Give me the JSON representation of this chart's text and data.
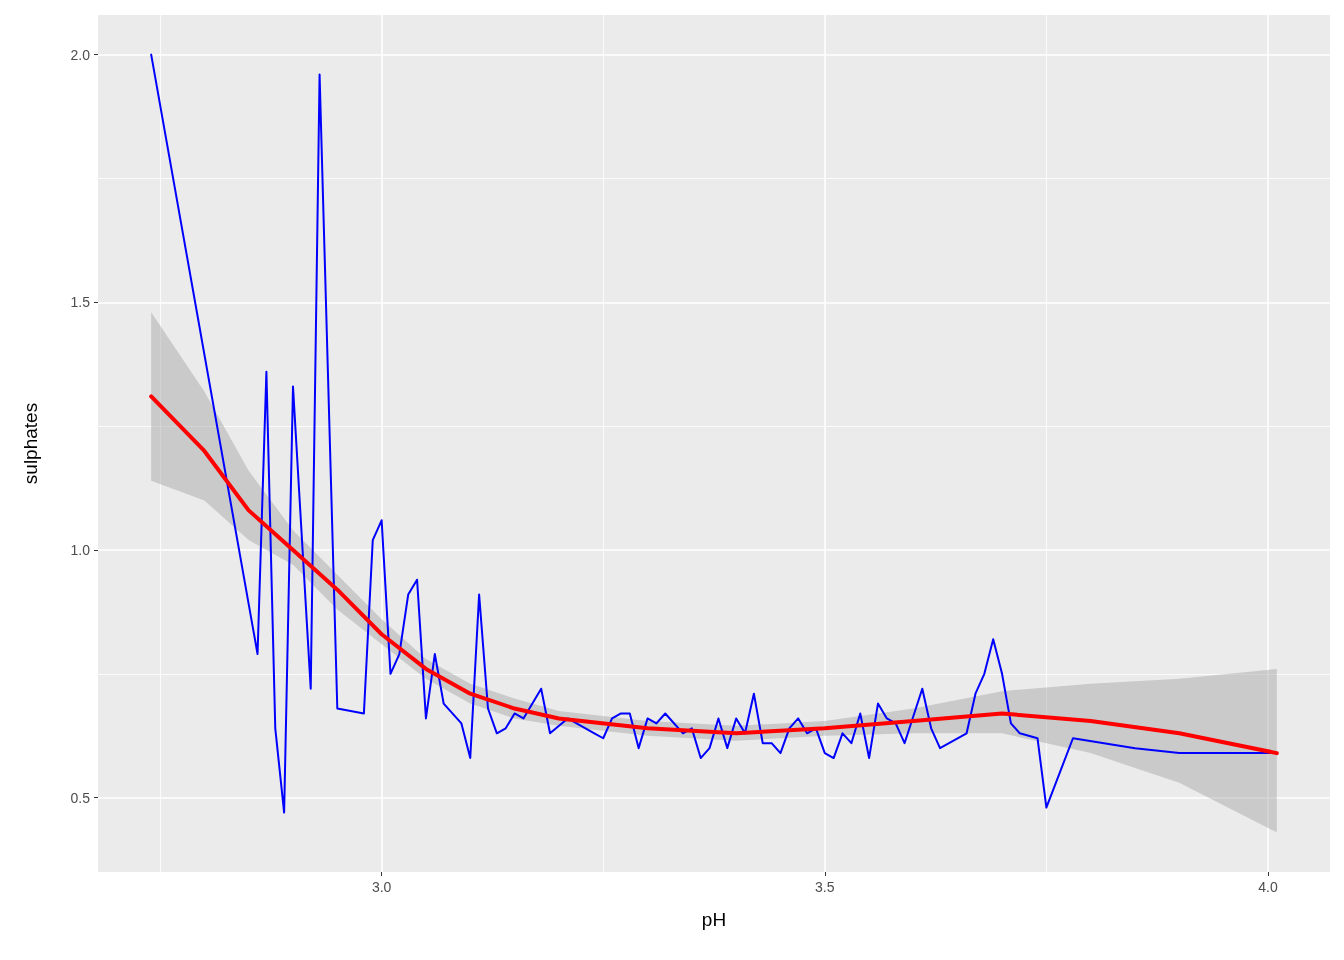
{
  "chart_data": {
    "type": "line",
    "xlabel": "pH",
    "ylabel": "sulphates",
    "xlim": [
      2.68,
      4.07
    ],
    "ylim": [
      0.35,
      2.08
    ],
    "xticks": [
      {
        "value": 2.75,
        "label": null
      },
      {
        "value": 3.0,
        "label": "3.0"
      },
      {
        "value": 3.25,
        "label": null
      },
      {
        "value": 3.5,
        "label": "3.5"
      },
      {
        "value": 3.75,
        "label": null
      },
      {
        "value": 4.0,
        "label": "4.0"
      }
    ],
    "yticks": [
      0.5,
      {
        "value": 0.75,
        "label": null
      },
      {
        "value": 1.0,
        "label": "1.0"
      },
      {
        "value": 1.25,
        "label": null
      },
      {
        "value": 1.5,
        "label": "1.5"
      },
      {
        "value": 1.75,
        "label": null
      },
      {
        "value": 2.0,
        "label": "2.0"
      }
    ],
    "grid": true,
    "marker": "none",
    "line_style": "solid",
    "series": [
      {
        "color": "#0000ff",
        "x": [
          2.74,
          2.86,
          2.87,
          2.88,
          2.89,
          2.9,
          2.92,
          2.93,
          2.95,
          2.98,
          2.99,
          3.0,
          3.01,
          3.02,
          3.03,
          3.04,
          3.05,
          3.06,
          3.07,
          3.09,
          3.1,
          3.11,
          3.12,
          3.13,
          3.14,
          3.15,
          3.16,
          3.18,
          3.19,
          3.21,
          3.22,
          3.24,
          3.25,
          3.26,
          3.27,
          3.28,
          3.29,
          3.3,
          3.31,
          3.32,
          3.34,
          3.35,
          3.36,
          3.37,
          3.38,
          3.39,
          3.4,
          3.41,
          3.42,
          3.43,
          3.44,
          3.45,
          3.46,
          3.47,
          3.48,
          3.49,
          3.5,
          3.51,
          3.52,
          3.53,
          3.54,
          3.55,
          3.56,
          3.57,
          3.58,
          3.59,
          3.61,
          3.62,
          3.63,
          3.66,
          3.67,
          3.68,
          3.69,
          3.7,
          3.71,
          3.72,
          3.74,
          3.75,
          3.78,
          3.85,
          3.9,
          4.01
        ],
        "values": [
          2.0,
          0.79,
          1.36,
          0.64,
          0.47,
          1.33,
          0.72,
          1.96,
          0.68,
          0.67,
          1.02,
          1.06,
          0.75,
          0.79,
          0.91,
          0.94,
          0.66,
          0.79,
          0.69,
          0.65,
          0.58,
          0.91,
          0.68,
          0.63,
          0.64,
          0.67,
          0.66,
          0.72,
          0.63,
          0.66,
          0.65,
          0.63,
          0.62,
          0.66,
          0.67,
          0.67,
          0.6,
          0.66,
          0.65,
          0.67,
          0.63,
          0.64,
          0.58,
          0.6,
          0.66,
          0.6,
          0.66,
          0.63,
          0.71,
          0.61,
          0.61,
          0.59,
          0.64,
          0.66,
          0.63,
          0.64,
          0.59,
          0.58,
          0.63,
          0.61,
          0.67,
          0.58,
          0.69,
          0.66,
          0.65,
          0.61,
          0.72,
          0.64,
          0.6,
          0.63,
          0.71,
          0.75,
          0.82,
          0.75,
          0.65,
          0.63,
          0.62,
          0.48,
          0.62,
          0.6,
          0.59,
          0.59
        ]
      },
      {
        "color": "#ff0000",
        "x": [
          2.74,
          2.8,
          2.85,
          2.9,
          2.95,
          3.0,
          3.05,
          3.1,
          3.15,
          3.2,
          3.3,
          3.4,
          3.5,
          3.6,
          3.7,
          3.8,
          3.9,
          4.01
        ],
        "values": [
          1.31,
          1.2,
          1.08,
          1.0,
          0.92,
          0.83,
          0.76,
          0.71,
          0.68,
          0.66,
          0.64,
          0.63,
          0.64,
          0.655,
          0.67,
          0.655,
          0.63,
          0.59
        ],
        "lower": [
          1.14,
          1.1,
          1.02,
          0.97,
          0.88,
          0.81,
          0.74,
          0.69,
          0.66,
          0.645,
          0.625,
          0.615,
          0.625,
          0.63,
          0.63,
          0.59,
          0.53,
          0.43
        ],
        "upper": [
          1.48,
          1.32,
          1.16,
          1.04,
          0.95,
          0.86,
          0.78,
          0.73,
          0.7,
          0.675,
          0.655,
          0.645,
          0.655,
          0.68,
          0.715,
          0.73,
          0.74,
          0.76
        ]
      }
    ]
  }
}
